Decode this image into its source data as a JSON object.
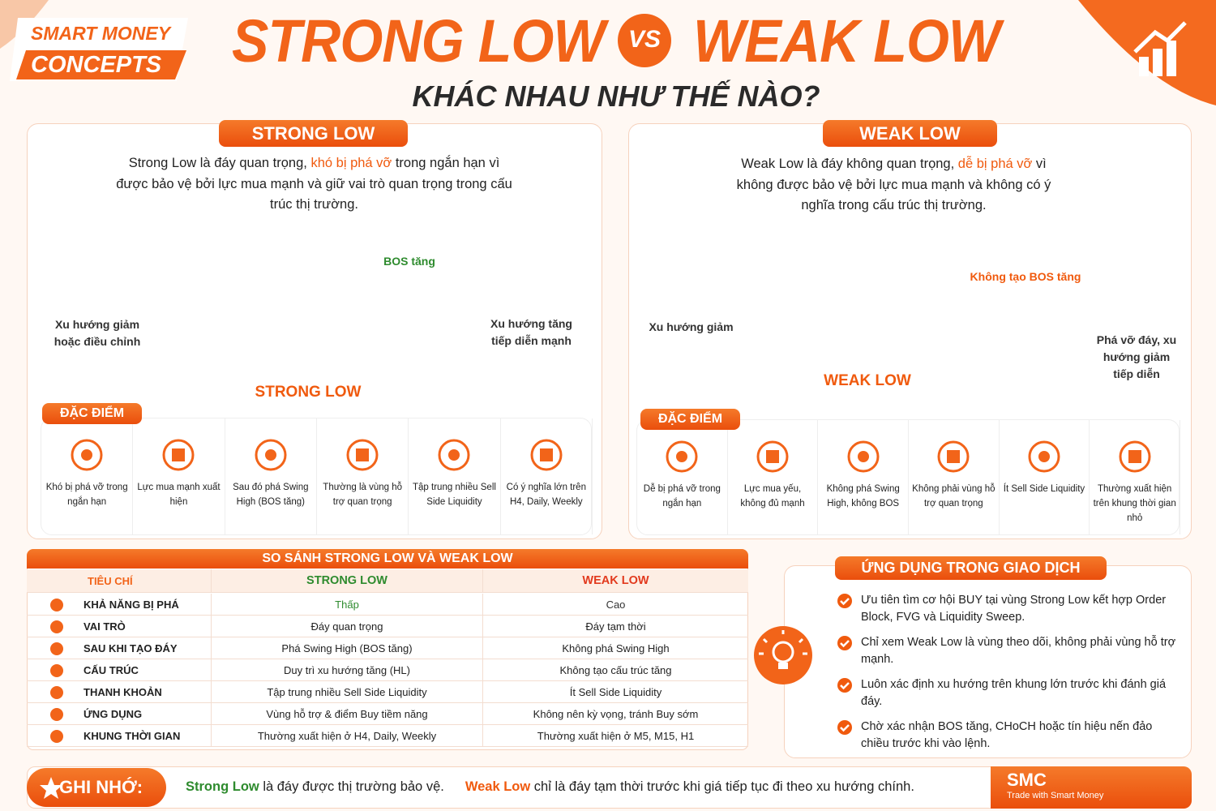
{
  "header": {
    "badge_line1": "SMART MONEY",
    "badge_line2": "CONCEPTS",
    "title_left": "STRONG LOW",
    "vs": "VS",
    "title_right": "WEAK LOW",
    "subtitle": "KHÁC NHAU NHƯ THẾ NÀO?"
  },
  "strong_panel": {
    "title": "STRONG LOW",
    "description_before": "Strong Low là đáy quan trọng, ",
    "description_highlight": "khó bị phá vỡ",
    "description_after": " trong ngắn hạn vì được bảo vệ bởi lực mua mạnh và giữ vai trò quan trọng trong cấu trúc thị trường.",
    "label_bos": "BOS tăng",
    "label_down": "Xu hướng giảm hoặc điều chỉnh",
    "label_up": "Xu hướng tăng tiếp diễn mạnh",
    "label_low": "STRONG LOW",
    "features_title": "ĐẶC ĐIỂM",
    "features": [
      "Khó bị phá vỡ trong ngắn hạn",
      "Lực mua mạnh xuất hiện",
      "Sau đó phá Swing High (BOS tăng)",
      "Thường là vùng hỗ trợ quan trọng",
      "Tập trung nhiều Sell Side Liquidity",
      "Có ý nghĩa lớn trên H4, Daily, Weekly"
    ]
  },
  "weak_panel": {
    "title": "WEAK LOW",
    "description_before": "Weak Low là đáy không quan trọng, ",
    "description_highlight": "dễ bị phá vỡ",
    "description_after": " vì không được bảo vệ bởi lực mua mạnh và không có ý nghĩa trong cấu trúc thị trường.",
    "label_nobos": "Không tạo BOS tăng",
    "label_down": "Xu hướng giảm",
    "label_break": "Phá vỡ đáy, xu hướng giảm tiếp diễn",
    "label_low": "WEAK LOW",
    "features_title": "ĐẶC ĐIỂM",
    "features": [
      "Dễ bị phá vỡ trong ngắn hạn",
      "Lực mua yếu, không đủ mạnh",
      "Không phá Swing High, không BOS",
      "Không phải vùng hỗ trợ quan trọng",
      "Ít Sell Side Liquidity",
      "Thường xuất hiện trên khung thời gian nhỏ"
    ]
  },
  "table": {
    "title": "SO SÁNH STRONG LOW VÀ WEAK LOW",
    "headers": [
      "TIÊU CHÍ",
      "STRONG LOW",
      "WEAK LOW"
    ],
    "rows": [
      [
        "KHẢ NĂNG BỊ PHÁ",
        "Thấp",
        "Cao"
      ],
      [
        "VAI TRÒ",
        "Đáy quan trọng",
        "Đáy tạm thời"
      ],
      [
        "SAU KHI TẠO ĐÁY",
        "Phá Swing High (BOS tăng)",
        "Không phá Swing High"
      ],
      [
        "CẤU TRÚC",
        "Duy trì xu hướng tăng (HL)",
        "Không tạo cấu trúc tăng"
      ],
      [
        "THANH KHOẢN",
        "Tập trung nhiều Sell Side Liquidity",
        "Ít Sell Side Liquidity"
      ],
      [
        "ỨNG DỤNG",
        "Vùng hỗ trợ & điểm Buy tiềm năng",
        "Không nên kỳ vọng, tránh Buy sớm"
      ],
      [
        "KHUNG THỜI GIAN",
        "Thường xuất hiện ở H4, Daily, Weekly",
        "Thường xuất hiện ở M5, M15, H1"
      ]
    ]
  },
  "application": {
    "title": "ỨNG DỤNG TRONG GIAO DỊCH",
    "items": [
      "Ưu tiên tìm cơ hội BUY tại vùng Strong Low kết hợp Order Block, FVG và Liquidity Sweep.",
      "Chỉ xem Weak Low là vùng theo dõi, không phải vùng hỗ trợ mạnh.",
      "Luôn xác định xu hướng trên khung lớn trước khi đánh giá đáy.",
      "Chờ xác nhận BOS tăng, CHoCH hoặc tín hiệu nến đảo chiều trước khi vào lệnh."
    ]
  },
  "footer": {
    "label": "GHI NHỚ:",
    "strong_term": "Strong Low",
    "strong_text": " là đáy được thị trường bảo vệ.",
    "weak_term": "Weak Low",
    "weak_text": " chỉ là đáy tạm thời trước khi giá tiếp tục đi theo xu hướng chính.",
    "brand": "SMC",
    "brand_tagline": "Trade with Smart Money"
  }
}
